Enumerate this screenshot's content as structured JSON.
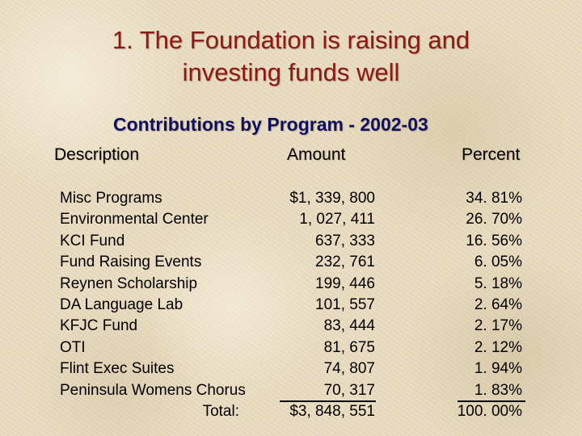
{
  "title_line1": "1. The Foundation is raising and",
  "title_line2": "investing funds well",
  "subtitle": "Contributions by Program - 2002-03",
  "columns": {
    "description": "Description",
    "amount": "Amount",
    "percent": "Percent"
  },
  "rows": [
    {
      "description": "Misc Programs",
      "amount": "$1, 339, 800",
      "percent": "34. 81%"
    },
    {
      "description": "Environmental Center",
      "amount": "1, 027, 411",
      "percent": "26. 70%"
    },
    {
      "description": "KCI Fund",
      "amount": "637, 333",
      "percent": "16. 56%"
    },
    {
      "description": "Fund Raising Events",
      "amount": "232, 761",
      "percent": "6. 05%"
    },
    {
      "description": "Reynen Scholarship",
      "amount": "199, 446",
      "percent": "5. 18%"
    },
    {
      "description": "DA Language Lab",
      "amount": "101, 557",
      "percent": "2. 64%"
    },
    {
      "description": "KFJC Fund",
      "amount": "83, 444",
      "percent": "2. 17%"
    },
    {
      "description": "OTI",
      "amount": "81, 675",
      "percent": "2. 12%"
    },
    {
      "description": "Flint Exec Suites",
      "amount": "74, 807",
      "percent": "1. 94%"
    },
    {
      "description": "Peninsula Womens Chorus",
      "amount": "70, 317",
      "percent": "1. 83%"
    }
  ],
  "total": {
    "label": "Total:",
    "amount": "$3, 848, 551",
    "percent": "100. 00%"
  },
  "colors": {
    "title": "#8b1a14",
    "subtitle": "#10105e",
    "background": "#e9dcc0"
  }
}
